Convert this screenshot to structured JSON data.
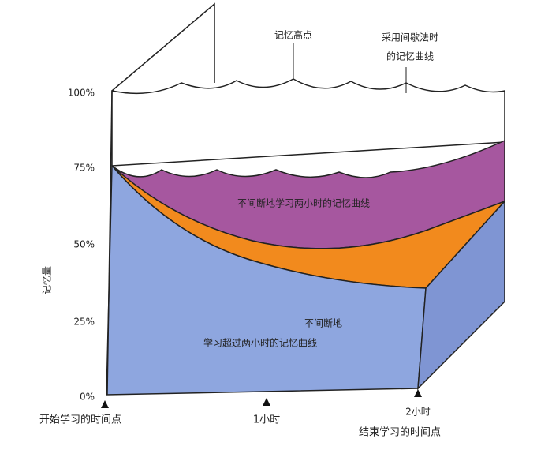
{
  "axis": {
    "y_label": "记忆量",
    "y_ticks": [
      "100%",
      "75%",
      "50%",
      "25%",
      "0%"
    ],
    "x_ticks": [
      "开始学习的时间点",
      "1小时",
      "2小时",
      "结束学习的时间点"
    ]
  },
  "annotations": {
    "peak": "记忆高点",
    "interval_line1": "采用间歇法时",
    "interval_line2": "的记忆曲线",
    "continuous": "不间断地学习两小时的记忆曲线",
    "over_line1": "不间断地",
    "over_line2": "学习超过两小时的记忆曲线"
  }
}
